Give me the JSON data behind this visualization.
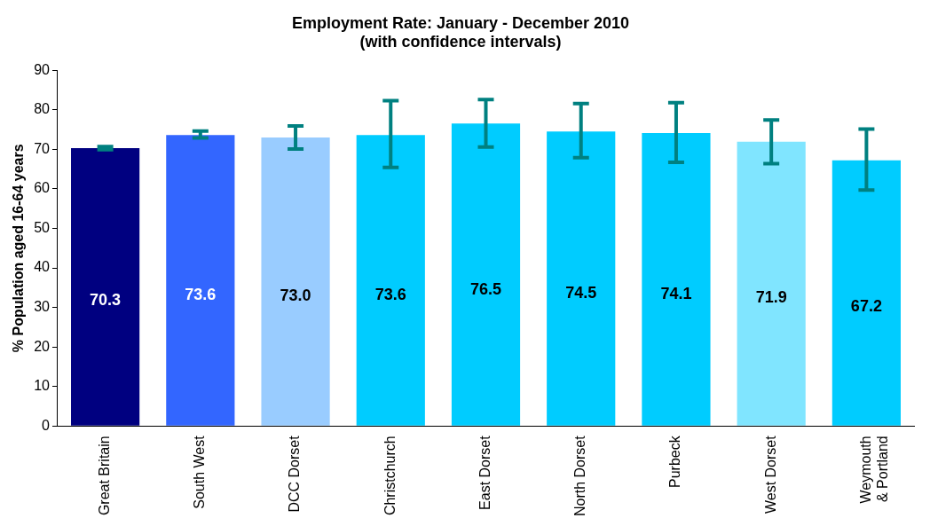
{
  "chart_data": {
    "type": "bar",
    "title": "Employment Rate: January - December 2010",
    "subtitle": "(with confidence intervals)",
    "ylabel": "% Population aged 16-64 years",
    "categories": [
      "Great Britain",
      "South West",
      "DCC Dorset",
      "Christchurch",
      "East Dorset",
      "North Dorset",
      "Purbeck",
      "West Dorset",
      "Weymouth & Portland"
    ],
    "values": [
      70.3,
      73.6,
      73.0,
      73.6,
      76.5,
      74.5,
      74.1,
      71.9,
      67.2
    ],
    "colors": [
      "#000080",
      "#3366ff",
      "#99ccff",
      "#00ccff",
      "#00ccff",
      "#00ccff",
      "#00ccff",
      "#80e5ff",
      "#00ccff"
    ],
    "errors": [
      [
        69.9,
        70.7
      ],
      [
        72.9,
        74.6
      ],
      [
        70.1,
        75.9
      ],
      [
        65.4,
        82.3
      ],
      [
        70.6,
        82.6
      ],
      [
        67.9,
        81.6
      ],
      [
        66.7,
        81.8
      ],
      [
        66.4,
        77.4
      ],
      [
        59.7,
        75.1
      ]
    ],
    "ylim": [
      0,
      90
    ],
    "yticks": [
      0,
      10,
      20,
      30,
      40,
      50,
      60,
      70,
      80,
      90
    ],
    "value_labels": [
      "70.3",
      "73.6",
      "73.0",
      "73.6",
      "76.5",
      "74.5",
      "74.1",
      "71.9",
      "67.2"
    ],
    "grid": false,
    "legend": false
  }
}
